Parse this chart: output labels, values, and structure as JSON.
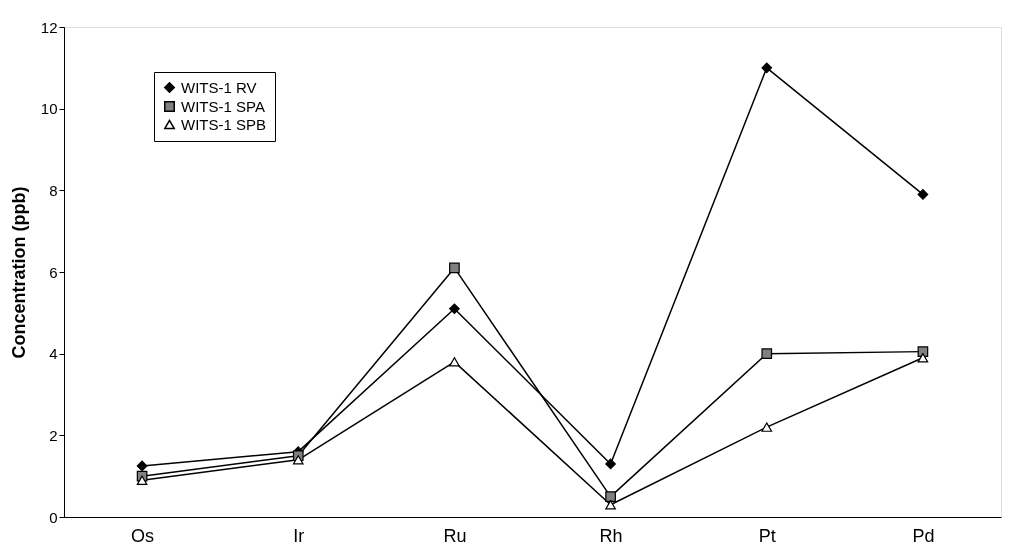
{
  "chart_data": {
    "type": "line",
    "ylabel": "Concentration (ppb)",
    "categories": [
      "Os",
      "Ir",
      "Ru",
      "Rh",
      "Pt",
      "Pd"
    ],
    "series": [
      {
        "name": "WITS-1 RV",
        "color": "#000000",
        "marker": "diamond",
        "values": [
          1.25,
          1.6,
          5.1,
          1.3,
          11.0,
          7.9
        ]
      },
      {
        "name": "WITS-1 SPA",
        "color": "#808080",
        "marker": "square",
        "values": [
          1.0,
          1.5,
          6.1,
          0.5,
          4.0,
          4.05
        ]
      },
      {
        "name": "WITS-1 SPB",
        "color": "#000000",
        "marker": "triangle",
        "values": [
          0.9,
          1.4,
          3.8,
          0.3,
          2.2,
          3.9
        ]
      }
    ],
    "ylim": [
      0,
      12
    ],
    "yticks": [
      0,
      2,
      4,
      6,
      8,
      10,
      12
    ],
    "grid": false,
    "legend": "top left",
    "line_style": "solid"
  }
}
